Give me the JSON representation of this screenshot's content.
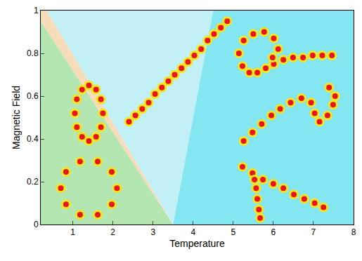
{
  "chart_data": {
    "type": "phase_diagram",
    "x_label": "Temperature",
    "y_label": "Magnetic Field",
    "xlim": [
      0.2,
      8
    ],
    "ylim": [
      0,
      1
    ],
    "xticks": [
      1,
      2,
      3,
      4,
      5,
      6,
      7,
      8
    ],
    "yticks": [
      0,
      0.2,
      0.4,
      0.6,
      0.8,
      1
    ],
    "grid": false,
    "series": [
      {
        "type": "region",
        "color": "#b3e6b0",
        "x": [
          0.2,
          0.2,
          3.5
        ],
        "values": [
          0,
          0.95,
          0
        ]
      },
      {
        "type": "region",
        "color": "#f6dcb8",
        "x": [
          0.2,
          0.2,
          0.35,
          3.5
        ],
        "values": [
          0.95,
          1,
          1,
          0
        ]
      },
      {
        "type": "region",
        "color": "#c2f0f6",
        "x": [
          0.35,
          4.5,
          3.5
        ],
        "values": [
          1,
          1,
          0
        ]
      },
      {
        "type": "region",
        "color": "#84e6f0",
        "x": [
          3.5,
          4.5,
          8,
          8
        ],
        "values": [
          0,
          1,
          1,
          0
        ]
      },
      {
        "type": "scatter",
        "marker": "circle",
        "color": "#e8141e",
        "x": [
          1.75,
          1.7,
          1.58,
          1.4,
          1.23,
          1.1,
          1.05,
          1.1,
          1.23,
          1.4,
          1.58,
          1.7
        ],
        "values": [
          0.52,
          0.585,
          0.63,
          0.65,
          0.63,
          0.585,
          0.52,
          0.455,
          0.41,
          0.39,
          0.41,
          0.455
        ]
      },
      {
        "type": "scatter",
        "marker": "circle",
        "color": "#e8141e",
        "x": [
          2.1,
          1.97,
          1.62,
          1.18,
          0.83,
          0.7,
          0.83,
          1.18,
          1.62,
          1.97
        ],
        "values": [
          0.17,
          0.246,
          0.294,
          0.294,
          0.246,
          0.17,
          0.094,
          0.046,
          0.046,
          0.094
        ]
      },
      {
        "type": "scatter",
        "marker": "circle",
        "color": "#e8141e",
        "x": [
          2.4,
          2.56,
          2.73,
          2.89,
          3.05,
          3.22,
          3.38,
          3.54,
          3.71,
          3.87,
          4.03,
          4.2,
          4.36,
          4.52,
          4.69,
          4.85
        ],
        "values": [
          0.48,
          0.51,
          0.54,
          0.57,
          0.61,
          0.64,
          0.67,
          0.7,
          0.73,
          0.76,
          0.79,
          0.82,
          0.86,
          0.89,
          0.92,
          0.95
        ]
      },
      {
        "type": "scatter",
        "marker": "circle",
        "color": "#e8141e",
        "x": [
          7.46,
          7.22,
          6.98,
          6.74,
          6.49,
          6.25,
          6.01,
          5.81,
          5.6,
          5.4,
          5.23,
          5.14,
          5.26,
          5.5,
          5.77,
          6.01,
          6.12,
          5.98
        ],
        "values": [
          0.79,
          0.79,
          0.79,
          0.78,
          0.78,
          0.77,
          0.75,
          0.73,
          0.71,
          0.71,
          0.74,
          0.8,
          0.86,
          0.89,
          0.9,
          0.87,
          0.82,
          0.78
        ]
      },
      {
        "type": "scatter",
        "marker": "circle",
        "color": "#e8141e",
        "x": [
          5.26,
          5.48,
          5.71,
          5.95,
          6.17,
          6.43,
          6.7,
          6.94,
          7.03,
          7.15,
          7.35,
          7.49,
          7.54,
          7.39
        ],
        "values": [
          0.39,
          0.43,
          0.47,
          0.51,
          0.54,
          0.57,
          0.59,
          0.57,
          0.52,
          0.48,
          0.51,
          0.56,
          0.6,
          0.64
        ]
      },
      {
        "type": "scatter",
        "marker": "circle",
        "color": "#e8141e",
        "x": [
          5.23,
          5.48,
          5.74,
          6.0,
          6.25,
          6.51,
          6.77,
          7.03,
          7.25,
          5.53,
          5.57,
          5.6,
          5.64,
          5.67
        ],
        "values": [
          0.27,
          0.24,
          0.21,
          0.19,
          0.17,
          0.14,
          0.12,
          0.1,
          0.08,
          0.21,
          0.17,
          0.12,
          0.07,
          0.03
        ]
      }
    ]
  }
}
